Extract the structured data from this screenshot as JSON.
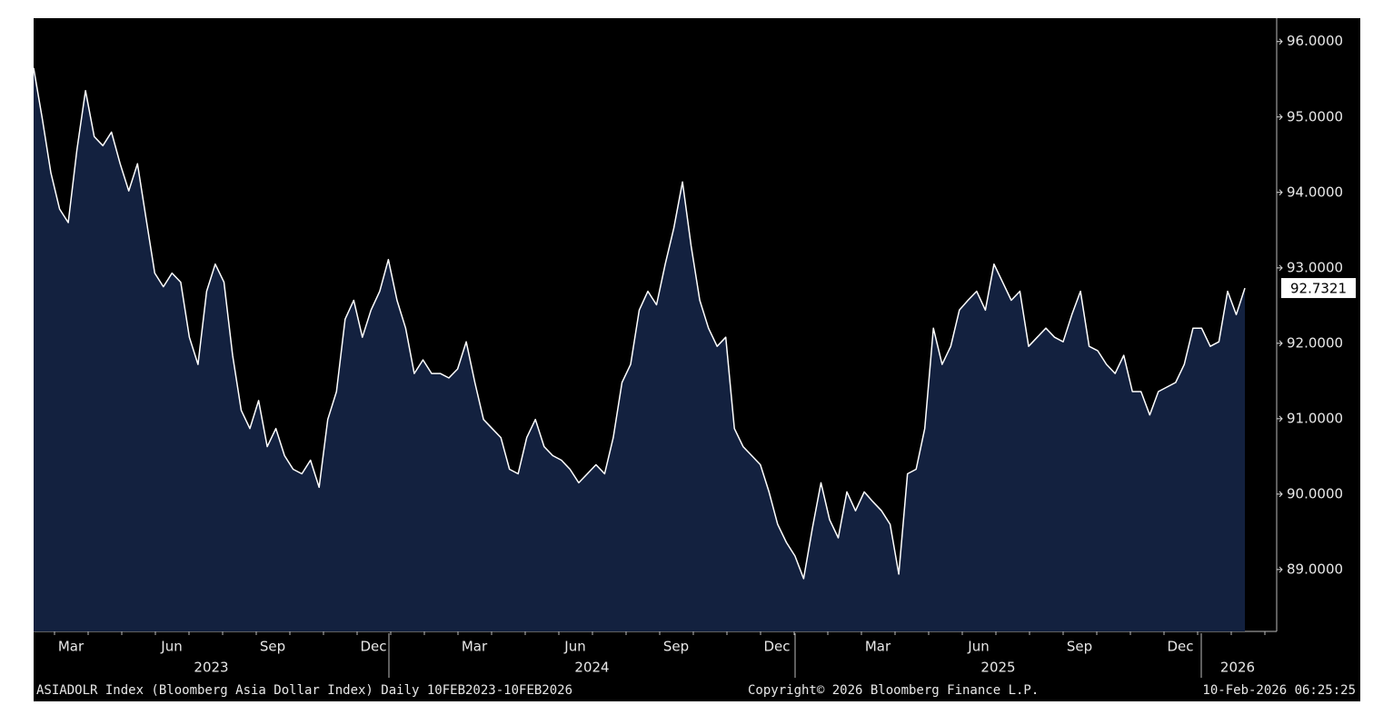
{
  "chart_data": {
    "type": "area",
    "series_name": "ASIADOLR Index (Bloomberg Asia Dollar Index) Daily 10FEB2023-10FEB2026",
    "copyright": "Copyright© 2026 Bloomberg Finance L.P.",
    "timestamp": "10-Feb-2026 06:25:25",
    "line_color": "#ffffff",
    "fill_color": "#13213f",
    "month_labels": [
      "Mar",
      "Jun",
      "Sep",
      "Dec",
      "Mar",
      "Jun",
      "Sep",
      "Dec",
      "Mar",
      "Jun",
      "Sep",
      "Dec"
    ],
    "year_labels": [
      "2023",
      "2024",
      "2025",
      "2026"
    ],
    "ylim": [
      88.18,
      96.31
    ],
    "yticks": [
      {
        "value": 89,
        "label": "89.0000"
      },
      {
        "value": 90,
        "label": "90.0000"
      },
      {
        "value": 91,
        "label": "91.0000"
      },
      {
        "value": 92,
        "label": "92.0000"
      },
      {
        "value": 93,
        "label": "93.0000"
      },
      {
        "value": 94,
        "label": "94.0000"
      },
      {
        "value": 95,
        "label": "95.0000"
      },
      {
        "value": 96,
        "label": "96.0000"
      }
    ],
    "values": [
      95.65,
      94.98,
      94.26,
      93.78,
      93.6,
      94.56,
      95.35,
      94.74,
      94.62,
      94.8,
      94.38,
      94.02,
      94.38,
      93.65,
      92.93,
      92.75,
      92.93,
      92.81,
      92.08,
      91.72,
      92.69,
      93.05,
      92.81,
      91.84,
      91.11,
      90.87,
      91.24,
      90.63,
      90.87,
      90.51,
      90.33,
      90.27,
      90.45,
      90.09,
      90.99,
      91.36,
      92.32,
      92.57,
      92.08,
      92.44,
      92.69,
      93.11,
      92.57,
      92.2,
      91.6,
      91.78,
      91.6,
      91.6,
      91.54,
      91.66,
      92.02,
      91.48,
      90.99,
      90.87,
      90.75,
      90.33,
      90.27,
      90.75,
      90.99,
      90.63,
      90.51,
      90.45,
      90.33,
      90.15,
      90.27,
      90.39,
      90.27,
      90.75,
      91.48,
      91.72,
      92.44,
      92.69,
      92.51,
      93.05,
      93.53,
      94.14,
      93.29,
      92.57,
      92.2,
      91.96,
      92.08,
      90.87,
      90.63,
      90.51,
      90.39,
      90.03,
      89.6,
      89.36,
      89.18,
      88.88,
      89.54,
      90.15,
      89.66,
      89.42,
      90.03,
      89.78,
      90.03,
      89.9,
      89.78,
      89.6,
      88.94,
      90.27,
      90.33,
      90.87,
      92.2,
      91.72,
      91.96,
      92.44,
      92.57,
      92.69,
      92.44,
      93.05,
      92.81,
      92.57,
      92.69,
      91.96,
      92.08,
      92.2,
      92.08,
      92.02,
      92.38,
      92.69,
      91.96,
      91.9,
      91.72,
      91.6,
      91.84,
      91.36,
      91.36,
      91.05,
      91.36,
      91.42,
      91.48,
      91.72,
      92.2,
      92.2,
      91.96,
      92.02,
      92.69,
      92.38,
      92.7321
    ]
  }
}
